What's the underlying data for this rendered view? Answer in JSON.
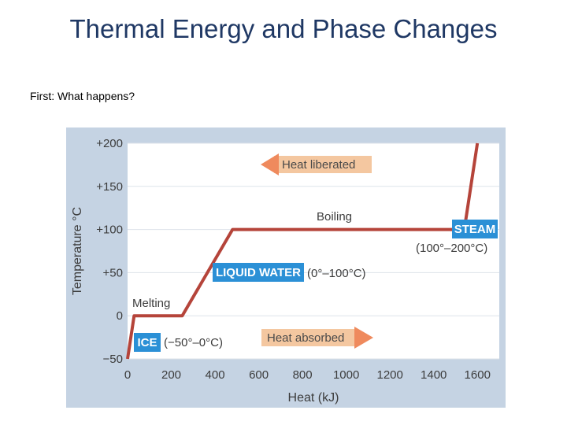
{
  "slide": {
    "title": "Thermal Energy and Phase Changes",
    "subtitle": "First: What happens?"
  },
  "colors": {
    "line": "#b5443a",
    "label_box": "#2b90d6",
    "arrow_fill": "#f4c7a0",
    "arrow_head": "#ef8a5d",
    "plot_bg": "#ffffff",
    "frame": "#c5d3e3"
  },
  "chart_data": {
    "type": "line",
    "title": "",
    "xlabel": "Heat (kJ)",
    "ylabel": "Temperature °C",
    "xlim": [
      0,
      1700
    ],
    "ylim": [
      -50,
      200
    ],
    "x_ticks": [
      "0",
      "200",
      "400",
      "600",
      "800",
      "1000",
      "1200",
      "1400",
      "1600"
    ],
    "y_ticks": [
      "−50",
      "0",
      "+50",
      "+100",
      "+150",
      "+200"
    ],
    "grid": "horizontal",
    "series": [
      {
        "x": [
          0,
          30,
          250,
          480,
          1540,
          1600
        ],
        "y": [
          -50,
          0,
          0,
          100,
          100,
          200
        ]
      }
    ],
    "annotations": {
      "melting": "Melting",
      "boiling": "Boiling",
      "ice": "ICE",
      "ice_range": "(−50°–0°C)",
      "liquid": "LIQUID WATER",
      "liquid_range": "(0°–100°C)",
      "steam": "STEAM",
      "steam_range": "(100°–200°C)",
      "heat_liberated": "Heat liberated",
      "heat_absorbed": "Heat absorbed"
    }
  }
}
